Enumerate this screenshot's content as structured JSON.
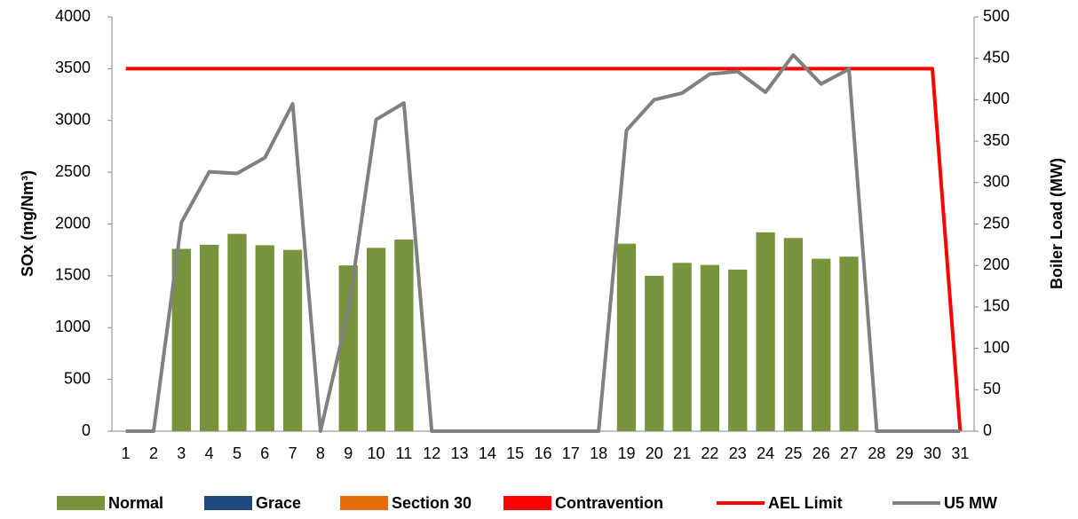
{
  "chart_data": {
    "type": "bar-line",
    "y_label": "SOx (mg/Nm³)",
    "y2_label": "Boiler Load (MW)",
    "categories": [
      1,
      2,
      3,
      4,
      5,
      6,
      7,
      8,
      9,
      10,
      11,
      12,
      13,
      14,
      15,
      16,
      17,
      18,
      19,
      20,
      21,
      22,
      23,
      24,
      25,
      26,
      27,
      28,
      29,
      30,
      31
    ],
    "ylim": [
      0,
      4000
    ],
    "yticks": [
      0,
      500,
      1000,
      1500,
      2000,
      2500,
      3000,
      3500,
      4000
    ],
    "y2lim": [
      0,
      500
    ],
    "y2ticks": [
      0,
      50,
      100,
      150,
      200,
      250,
      300,
      350,
      400,
      450,
      500
    ],
    "series": [
      {
        "name": "Normal",
        "kind": "bar",
        "color": "#77933c",
        "values": [
          null,
          null,
          1760,
          1800,
          1905,
          1795,
          1750,
          null,
          1600,
          1770,
          1850,
          null,
          null,
          null,
          null,
          null,
          null,
          null,
          1810,
          1500,
          1625,
          1605,
          1560,
          1920,
          1865,
          1665,
          1685,
          null,
          null,
          null,
          null
        ]
      },
      {
        "name": "Grace",
        "kind": "bar",
        "color": "#1f497d",
        "values": [
          null,
          null,
          null,
          null,
          null,
          null,
          null,
          null,
          null,
          null,
          null,
          null,
          null,
          null,
          null,
          null,
          null,
          null,
          null,
          null,
          null,
          null,
          null,
          null,
          null,
          null,
          null,
          null,
          null,
          null,
          null
        ]
      },
      {
        "name": "Section 30",
        "kind": "bar",
        "color": "#e46c0a",
        "values": [
          null,
          null,
          null,
          null,
          null,
          null,
          null,
          null,
          null,
          null,
          null,
          null,
          null,
          null,
          null,
          null,
          null,
          null,
          null,
          null,
          null,
          null,
          null,
          null,
          null,
          null,
          null,
          null,
          null,
          null,
          null
        ]
      },
      {
        "name": "Contravention",
        "kind": "bar",
        "color": "#ff0000",
        "values": [
          null,
          null,
          null,
          null,
          null,
          null,
          null,
          null,
          null,
          null,
          null,
          null,
          null,
          null,
          null,
          null,
          null,
          null,
          null,
          null,
          null,
          null,
          null,
          null,
          null,
          null,
          null,
          null,
          null,
          null,
          null
        ]
      },
      {
        "name": "AEL Limit",
        "kind": "line",
        "color": "#ff0000",
        "values": [
          3500,
          3500,
          3500,
          3500,
          3500,
          3500,
          3500,
          3500,
          3500,
          3500,
          3500,
          3500,
          3500,
          3500,
          3500,
          3500,
          3500,
          3500,
          3500,
          3500,
          3500,
          3500,
          3500,
          3500,
          3500,
          3500,
          3500,
          3500,
          3500,
          3500,
          0
        ]
      },
      {
        "name": "U5 MW",
        "kind": "line",
        "axis": "y2",
        "color": "#808080",
        "values": [
          0,
          0,
          252,
          313,
          311,
          330,
          395,
          0,
          145,
          376,
          396,
          0,
          0,
          0,
          0,
          0,
          0,
          0,
          363,
          400,
          408,
          431,
          434,
          409,
          454,
          419,
          437,
          0,
          0,
          0,
          0
        ]
      }
    ]
  }
}
